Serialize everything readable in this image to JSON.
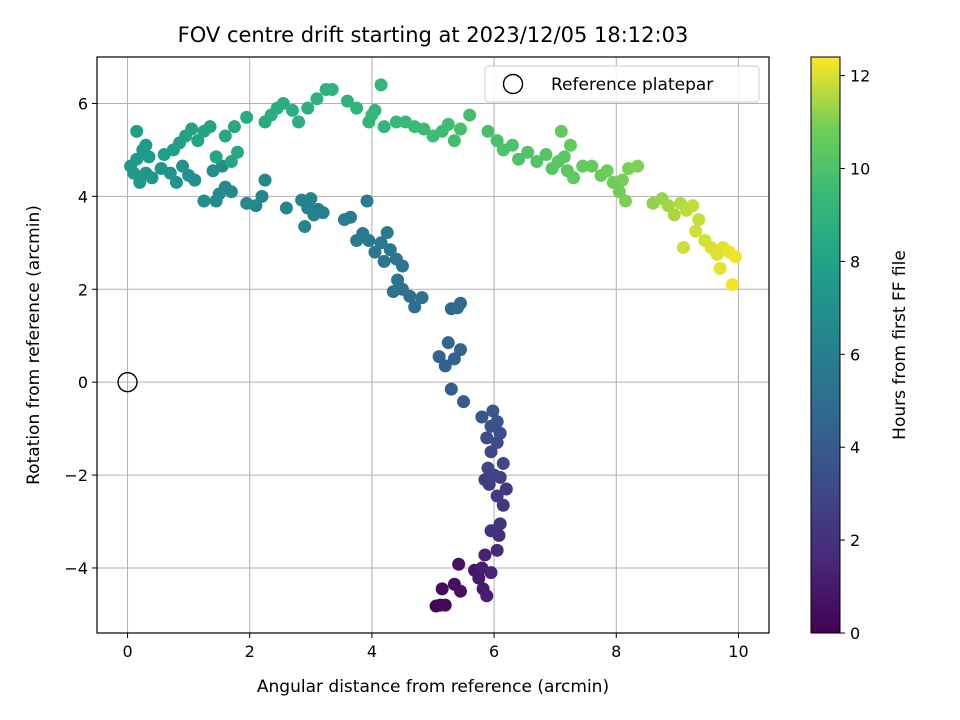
{
  "chart_data": {
    "type": "scatter",
    "title": "FOV centre drift starting at 2023/12/05 18:12:03",
    "xlabel": "Angular distance from reference (arcmin)",
    "ylabel": "Rotation from reference (arcmin)",
    "xlim": [
      -0.5,
      10.5
    ],
    "ylim": [
      -5.4,
      7.0
    ],
    "xticks": [
      0,
      2,
      4,
      6,
      8,
      10
    ],
    "yticks": [
      -4,
      -2,
      0,
      2,
      4,
      6
    ],
    "grid": true,
    "legend": {
      "position": "top-right",
      "entries": [
        "Reference platepar"
      ]
    },
    "reference_point": {
      "name": "Reference platepar",
      "x": 0,
      "y": 0
    },
    "colorbar": {
      "label": "Hours from first FF file",
      "min": 0,
      "max": 12.4,
      "ticks": [
        0,
        2,
        4,
        6,
        8,
        10,
        12
      ],
      "colormap": "viridis"
    },
    "points": [
      [
        5.05,
        -4.82,
        0.1
      ],
      [
        5.12,
        -4.8,
        0.2
      ],
      [
        5.2,
        -4.8,
        0.3
      ],
      [
        5.15,
        -4.45,
        0.4
      ],
      [
        5.35,
        -4.35,
        0.5
      ],
      [
        5.45,
        -4.5,
        0.6
      ],
      [
        5.42,
        -3.92,
        0.7
      ],
      [
        5.68,
        -4.05,
        0.8
      ],
      [
        5.75,
        -4.22,
        0.9
      ],
      [
        5.82,
        -4.45,
        1.0
      ],
      [
        5.88,
        -4.6,
        1.1
      ],
      [
        5.8,
        -4.0,
        1.2
      ],
      [
        5.85,
        -3.72,
        1.3
      ],
      [
        5.95,
        -4.1,
        1.4
      ],
      [
        6.05,
        -3.62,
        1.6
      ],
      [
        6.08,
        -3.3,
        1.8
      ],
      [
        6.0,
        -3.2,
        1.9
      ],
      [
        5.95,
        -3.2,
        2.0
      ],
      [
        6.1,
        -3.05,
        2.1
      ],
      [
        6.15,
        -2.65,
        2.2
      ],
      [
        6.2,
        -2.3,
        2.3
      ],
      [
        6.05,
        -2.45,
        2.4
      ],
      [
        5.92,
        -2.2,
        2.5
      ],
      [
        5.85,
        -2.1,
        2.6
      ],
      [
        6.1,
        -2.05,
        2.7
      ],
      [
        6.0,
        -2.0,
        2.8
      ],
      [
        5.9,
        -1.85,
        2.9
      ],
      [
        6.15,
        -1.75,
        3.0
      ],
      [
        5.95,
        -1.5,
        3.1
      ],
      [
        6.05,
        -1.3,
        3.2
      ],
      [
        5.88,
        -1.2,
        3.3
      ],
      [
        6.1,
        -1.1,
        3.4
      ],
      [
        5.95,
        -0.95,
        3.5
      ],
      [
        6.05,
        -0.85,
        3.6
      ],
      [
        5.8,
        -0.75,
        3.7
      ],
      [
        5.98,
        -0.62,
        3.8
      ],
      [
        5.5,
        -0.42,
        4.0
      ],
      [
        5.3,
        -0.15,
        4.1
      ],
      [
        5.2,
        0.35,
        4.2
      ],
      [
        5.1,
        0.55,
        4.3
      ],
      [
        5.35,
        0.5,
        4.4
      ],
      [
        5.45,
        0.7,
        4.5
      ],
      [
        5.25,
        0.85,
        4.6
      ],
      [
        5.3,
        1.58,
        4.7
      ],
      [
        5.45,
        1.7,
        4.8
      ],
      [
        5.4,
        1.6,
        4.9
      ],
      [
        4.7,
        1.62,
        5.0
      ],
      [
        4.82,
        1.82,
        5.1
      ],
      [
        4.62,
        1.85,
        5.15
      ],
      [
        4.5,
        2.0,
        5.2
      ],
      [
        4.42,
        2.2,
        5.25
      ],
      [
        4.35,
        1.95,
        5.3
      ],
      [
        4.5,
        2.5,
        5.35
      ],
      [
        4.4,
        2.65,
        5.4
      ],
      [
        4.3,
        2.85,
        5.45
      ],
      [
        4.2,
        2.6,
        5.5
      ],
      [
        4.05,
        2.8,
        5.55
      ],
      [
        3.95,
        3.05,
        5.6
      ],
      [
        3.85,
        3.2,
        5.65
      ],
      [
        4.25,
        3.22,
        5.7
      ],
      [
        4.15,
        3.0,
        5.75
      ],
      [
        3.75,
        3.05,
        5.8
      ],
      [
        3.65,
        3.55,
        5.85
      ],
      [
        3.55,
        3.5,
        5.9
      ],
      [
        3.92,
        3.9,
        5.95
      ],
      [
        3.2,
        3.65,
        6.0
      ],
      [
        3.12,
        3.72,
        6.05
      ],
      [
        3.05,
        3.6,
        6.1
      ],
      [
        2.95,
        3.75,
        6.15
      ],
      [
        2.85,
        3.92,
        6.2
      ],
      [
        3.0,
        3.95,
        6.25
      ],
      [
        2.9,
        3.35,
        6.3
      ],
      [
        2.6,
        3.75,
        6.35
      ],
      [
        2.2,
        4.0,
        6.4
      ],
      [
        2.1,
        3.8,
        6.45
      ],
      [
        2.25,
        4.35,
        6.5
      ],
      [
        1.95,
        3.85,
        6.55
      ],
      [
        1.7,
        4.1,
        6.6
      ],
      [
        1.6,
        4.2,
        6.65
      ],
      [
        1.5,
        4.05,
        6.7
      ],
      [
        1.45,
        3.9,
        6.75
      ],
      [
        1.55,
        4.65,
        6.8
      ],
      [
        1.4,
        4.55,
        6.85
      ],
      [
        1.25,
        3.9,
        6.9
      ],
      [
        1.1,
        4.35,
        7.0
      ],
      [
        1.0,
        4.45,
        7.05
      ],
      [
        0.9,
        4.65,
        7.1
      ],
      [
        0.8,
        4.3,
        7.15
      ],
      [
        0.7,
        4.5,
        7.2
      ],
      [
        0.55,
        4.6,
        7.25
      ],
      [
        0.4,
        4.4,
        7.3
      ],
      [
        0.3,
        4.5,
        7.35
      ],
      [
        0.2,
        4.3,
        7.4
      ],
      [
        0.1,
        4.5,
        7.45
      ],
      [
        0.05,
        4.65,
        7.5
      ],
      [
        0.15,
        4.8,
        7.55
      ],
      [
        0.25,
        5.0,
        7.6
      ],
      [
        0.35,
        4.85,
        7.65
      ],
      [
        0.3,
        5.1,
        7.7
      ],
      [
        0.15,
        5.4,
        7.75
      ],
      [
        0.6,
        4.9,
        7.8
      ],
      [
        0.75,
        5.0,
        7.85
      ],
      [
        0.85,
        5.15,
        7.9
      ],
      [
        0.95,
        5.3,
        7.95
      ],
      [
        1.05,
        5.45,
        8.0
      ],
      [
        1.15,
        5.2,
        8.05
      ],
      [
        1.25,
        5.4,
        8.1
      ],
      [
        1.35,
        5.5,
        8.15
      ],
      [
        1.45,
        4.85,
        8.2
      ],
      [
        1.7,
        4.75,
        8.25
      ],
      [
        1.8,
        4.95,
        8.3
      ],
      [
        1.6,
        5.3,
        8.35
      ],
      [
        1.75,
        5.5,
        8.4
      ],
      [
        1.95,
        5.7,
        8.45
      ],
      [
        2.25,
        5.6,
        8.5
      ],
      [
        2.35,
        5.75,
        8.55
      ],
      [
        2.45,
        5.9,
        8.6
      ],
      [
        2.55,
        6.0,
        8.65
      ],
      [
        2.7,
        5.85,
        8.7
      ],
      [
        2.8,
        5.6,
        8.75
      ],
      [
        2.95,
        5.9,
        8.8
      ],
      [
        3.1,
        6.1,
        8.85
      ],
      [
        3.25,
        6.3,
        8.9
      ],
      [
        3.35,
        6.3,
        8.95
      ],
      [
        3.6,
        6.05,
        9.0
      ],
      [
        3.75,
        5.9,
        9.05
      ],
      [
        3.95,
        5.6,
        9.1
      ],
      [
        4.05,
        5.85,
        9.15
      ],
      [
        4.15,
        6.4,
        9.2
      ],
      [
        4.2,
        5.5,
        9.25
      ],
      [
        4.0,
        5.75,
        9.3
      ],
      [
        4.4,
        5.6,
        9.35
      ],
      [
        4.55,
        5.6,
        9.4
      ],
      [
        4.7,
        5.5,
        9.45
      ],
      [
        4.85,
        5.45,
        9.5
      ],
      [
        5.0,
        5.3,
        9.55
      ],
      [
        5.15,
        5.4,
        9.6
      ],
      [
        5.25,
        5.55,
        9.65
      ],
      [
        5.35,
        5.2,
        9.7
      ],
      [
        5.45,
        5.45,
        9.75
      ],
      [
        5.6,
        5.75,
        9.8
      ],
      [
        5.9,
        5.4,
        9.85
      ],
      [
        6.05,
        5.2,
        9.9
      ],
      [
        6.15,
        5.0,
        9.95
      ],
      [
        6.3,
        5.1,
        10.0
      ],
      [
        6.4,
        4.8,
        10.05
      ],
      [
        6.55,
        4.95,
        10.1
      ],
      [
        6.7,
        4.75,
        10.15
      ],
      [
        6.85,
        4.9,
        10.2
      ],
      [
        6.95,
        4.6,
        10.25
      ],
      [
        7.05,
        4.75,
        10.3
      ],
      [
        7.15,
        4.85,
        10.35
      ],
      [
        7.2,
        4.55,
        10.4
      ],
      [
        7.3,
        4.4,
        10.45
      ],
      [
        7.1,
        5.4,
        10.5
      ],
      [
        7.25,
        5.1,
        10.55
      ],
      [
        7.45,
        4.65,
        10.6
      ],
      [
        7.6,
        4.65,
        10.65
      ],
      [
        7.75,
        4.45,
        10.7
      ],
      [
        7.85,
        4.55,
        10.75
      ],
      [
        7.95,
        4.3,
        10.8
      ],
      [
        8.05,
        4.1,
        10.85
      ],
      [
        8.1,
        4.35,
        10.9
      ],
      [
        8.2,
        4.6,
        10.95
      ],
      [
        8.15,
        3.9,
        11.0
      ],
      [
        8.35,
        4.65,
        11.05
      ],
      [
        8.6,
        3.85,
        11.2
      ],
      [
        8.75,
        3.95,
        11.3
      ],
      [
        8.85,
        3.8,
        11.4
      ],
      [
        8.95,
        3.6,
        11.5
      ],
      [
        9.05,
        3.85,
        11.6
      ],
      [
        9.15,
        3.7,
        11.7
      ],
      [
        9.25,
        3.8,
        11.75
      ],
      [
        9.35,
        3.5,
        11.8
      ],
      [
        9.1,
        2.9,
        11.85
      ],
      [
        9.3,
        3.25,
        11.9
      ],
      [
        9.45,
        3.05,
        11.95
      ],
      [
        9.55,
        2.9,
        12.0
      ],
      [
        9.65,
        2.75,
        12.05
      ],
      [
        9.75,
        2.9,
        12.1
      ],
      [
        9.7,
        2.45,
        12.15
      ],
      [
        9.85,
        2.8,
        12.2
      ],
      [
        9.95,
        2.7,
        12.25
      ],
      [
        9.9,
        2.1,
        12.3
      ]
    ]
  }
}
